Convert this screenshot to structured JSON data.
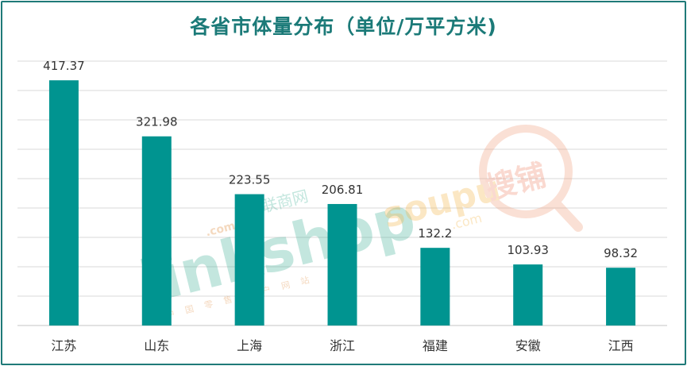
{
  "chart_data": {
    "type": "bar",
    "title": "各省市体量分布（单位/万平方米)",
    "categories": [
      "江苏",
      "山东",
      "上海",
      "浙江",
      "福建",
      "安徽",
      "江西"
    ],
    "values": [
      417.37,
      321.98,
      223.55,
      206.81,
      132.2,
      103.93,
      98.32
    ],
    "value_labels": [
      "417.37",
      "321.98",
      "223.55",
      "206.81",
      "132.2",
      "103.93",
      "98.32"
    ],
    "xlabel": "",
    "ylabel": "",
    "ylim": [
      0,
      450
    ],
    "grid": true,
    "legend": "none",
    "bar_color": "#009490",
    "gridline_color": "#d9d9d9"
  },
  "watermarks": {
    "linkshop": "linkshop",
    "linkshop_com": ".com",
    "linkshop_cn": "联商网",
    "linkshop_sub": "中国零售门户网站",
    "soupu": "soupu",
    "soupu_com": ".com",
    "soupu_cn": "搜铺"
  }
}
